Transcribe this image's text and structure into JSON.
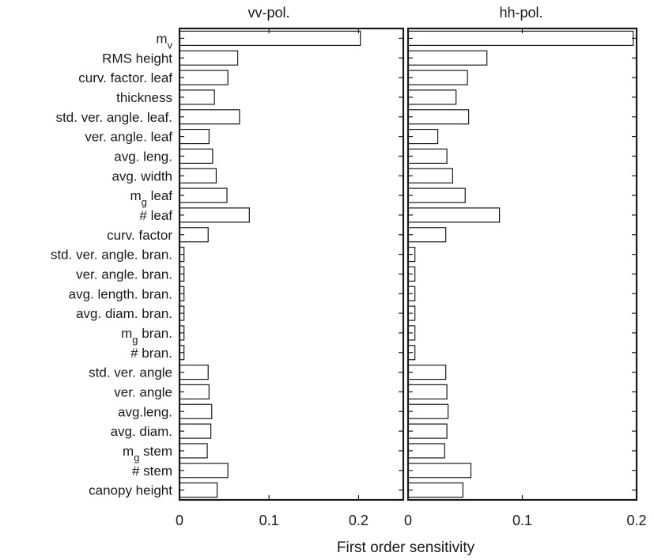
{
  "chart_data": {
    "type": "bar",
    "orientation": "horizontal",
    "xlabel": "First order sensitivity",
    "categories": [
      {
        "label": "m",
        "sub": "v"
      },
      {
        "label": "RMS height"
      },
      {
        "label": "curv. factor. leaf"
      },
      {
        "label": "thickness"
      },
      {
        "label": "std. ver. angle. leaf."
      },
      {
        "label": "ver. angle. leaf"
      },
      {
        "label": "avg. leng."
      },
      {
        "label": "avg. width"
      },
      {
        "label": "m",
        "sub": "g",
        "suffix": " leaf"
      },
      {
        "label": "# leaf"
      },
      {
        "label": "curv. factor"
      },
      {
        "label": "std. ver. angle. bran."
      },
      {
        "label": "ver. angle. bran."
      },
      {
        "label": "avg. length. bran."
      },
      {
        "label": "avg. diam. bran."
      },
      {
        "label": "m",
        "sub": "g",
        "suffix": " bran."
      },
      {
        "label": "# bran."
      },
      {
        "label": "std. ver. angle"
      },
      {
        "label": "ver. angle"
      },
      {
        "label": "avg.leng."
      },
      {
        "label": "avg. diam."
      },
      {
        "label": "m",
        "sub": "g",
        "suffix": " stem"
      },
      {
        "label": "# stem"
      },
      {
        "label": "canopy height"
      }
    ],
    "panels": [
      {
        "title": "vv-pol.",
        "xlim": [
          0,
          0.25
        ],
        "xticks": [
          0,
          0.1,
          0.2
        ],
        "xtick_labels": [
          "0",
          "0.1",
          "0.2"
        ],
        "values": [
          0.202,
          0.065,
          0.054,
          0.039,
          0.067,
          0.033,
          0.037,
          0.041,
          0.053,
          0.078,
          0.032,
          0.005,
          0.005,
          0.005,
          0.005,
          0.005,
          0.005,
          0.032,
          0.033,
          0.036,
          0.035,
          0.031,
          0.054,
          0.042
        ]
      },
      {
        "title": "hh-pol.",
        "xlim": [
          0,
          0.2
        ],
        "xticks": [
          0,
          0.1,
          0.2
        ],
        "xtick_labels": [
          "0",
          "0.1",
          "0.2"
        ],
        "values": [
          0.197,
          0.069,
          0.052,
          0.042,
          0.053,
          0.026,
          0.034,
          0.039,
          0.05,
          0.08,
          0.033,
          0.006,
          0.006,
          0.006,
          0.006,
          0.006,
          0.006,
          0.033,
          0.034,
          0.035,
          0.034,
          0.032,
          0.055,
          0.048
        ]
      }
    ]
  }
}
